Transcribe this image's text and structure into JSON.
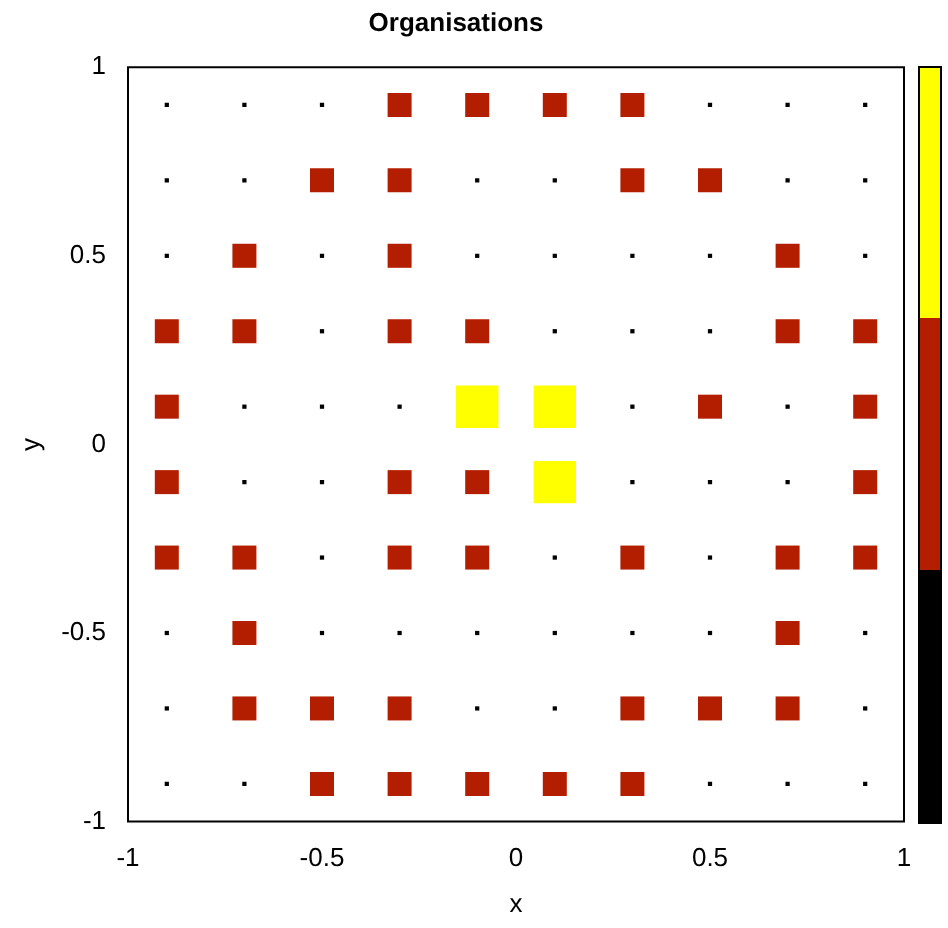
{
  "chart_data": {
    "type": "bubble",
    "title": "Organisations",
    "xlabel": "x",
    "ylabel": "y",
    "x": [
      -0.9,
      -0.7,
      -0.5,
      -0.3,
      -0.1,
      0.1,
      0.3,
      0.5,
      0.7,
      0.9,
      -0.9,
      -0.7,
      -0.5,
      -0.3,
      -0.1,
      0.1,
      0.3,
      0.5,
      0.7,
      0.9,
      -0.9,
      -0.7,
      -0.5,
      -0.3,
      -0.1,
      0.1,
      0.3,
      0.5,
      0.7,
      0.9,
      -0.9,
      -0.7,
      -0.5,
      -0.3,
      -0.1,
      0.1,
      0.3,
      0.5,
      0.7,
      0.9,
      -0.9,
      -0.7,
      -0.5,
      -0.3,
      -0.1,
      0.1,
      0.3,
      0.5,
      0.7,
      0.9,
      -0.9,
      -0.7,
      -0.5,
      -0.3,
      -0.1,
      0.1,
      0.3,
      0.5,
      0.7,
      0.9,
      -0.9,
      -0.7,
      -0.5,
      -0.3,
      -0.1,
      0.1,
      0.3,
      0.5,
      0.7,
      0.9,
      -0.9,
      -0.7,
      -0.5,
      -0.3,
      -0.1,
      0.1,
      0.3,
      0.5,
      0.7,
      0.9,
      -0.9,
      -0.7,
      -0.5,
      -0.3,
      -0.1,
      0.1,
      0.3,
      0.5,
      0.7,
      0.9,
      -0.9,
      -0.7,
      -0.5,
      -0.3,
      -0.1,
      0.1,
      0.3,
      0.5,
      0.7,
      0.9
    ],
    "values": [
      0.9,
      0.9,
      0.9,
      0.9,
      0.9,
      0.9,
      0.9,
      0.9,
      0.9,
      0.9,
      0.7,
      0.7,
      0.7,
      0.7,
      0.7,
      0.7,
      0.7,
      0.7,
      0.7,
      0.7,
      0.5,
      0.5,
      0.5,
      0.5,
      0.5,
      0.5,
      0.5,
      0.5,
      0.5,
      0.5,
      0.3,
      0.3,
      0.3,
      0.3,
      0.3,
      0.3,
      0.3,
      0.3,
      0.3,
      0.3,
      0.1,
      0.1,
      0.1,
      0.1,
      0.1,
      0.1,
      0.1,
      0.1,
      0.1,
      0.1,
      -0.1,
      -0.1,
      -0.1,
      -0.1,
      -0.1,
      -0.1,
      -0.1,
      -0.1,
      -0.1,
      -0.1,
      -0.3,
      -0.3,
      -0.3,
      -0.3,
      -0.3,
      -0.3,
      -0.3,
      -0.3,
      -0.3,
      -0.3,
      -0.5,
      -0.5,
      -0.5,
      -0.5,
      -0.5,
      -0.5,
      -0.5,
      -0.5,
      -0.5,
      -0.5,
      -0.7,
      -0.7,
      -0.7,
      -0.7,
      -0.7,
      -0.7,
      -0.7,
      -0.7,
      -0.7,
      -0.7,
      -0.9,
      -0.9,
      -0.9,
      -0.9,
      -0.9,
      -0.9,
      -0.9,
      -0.9,
      -0.9,
      -0.9
    ],
    "sizes": [
      0.01,
      0.01,
      0.01,
      0.32,
      0.32,
      0.32,
      0.32,
      0.01,
      0.01,
      0.01,
      0.01,
      0.01,
      0.32,
      0.32,
      0.01,
      0.01,
      0.32,
      0.32,
      0.01,
      0.01,
      0.01,
      0.32,
      0.01,
      0.32,
      0.01,
      0.01,
      0.01,
      0.01,
      0.32,
      0.01,
      0.32,
      0.32,
      0.01,
      0.32,
      0.32,
      0.01,
      0.01,
      0.01,
      0.32,
      0.32,
      0.32,
      0.01,
      0.01,
      0.01,
      1,
      1,
      0.01,
      0.32,
      0.01,
      0.32,
      0.32,
      0.01,
      0.01,
      0.32,
      0.32,
      1,
      0.01,
      0.01,
      0.01,
      0.32,
      0.32,
      0.32,
      0.01,
      0.32,
      0.32,
      0.01,
      0.32,
      0.01,
      0.32,
      0.32,
      0.01,
      0.32,
      0.01,
      0.01,
      0.01,
      0.01,
      0.01,
      0.01,
      0.32,
      0.01,
      0.01,
      0.32,
      0.32,
      0.32,
      0.01,
      0.01,
      0.32,
      0.32,
      0.32,
      0.01,
      0.01,
      0.01,
      0.32,
      0.32,
      0.32,
      0.32,
      0.32,
      0.01,
      0.01,
      0.01
    ],
    "colors": [
      "#000000",
      "#000000",
      "#000000",
      "#b41e00",
      "#b41e00",
      "#b41e00",
      "#b41e00",
      "#000000",
      "#000000",
      "#000000",
      "#000000",
      "#000000",
      "#b41e00",
      "#b41e00",
      "#000000",
      "#000000",
      "#b41e00",
      "#b41e00",
      "#000000",
      "#000000",
      "#000000",
      "#b41e00",
      "#000000",
      "#b41e00",
      "#000000",
      "#000000",
      "#000000",
      "#000000",
      "#b41e00",
      "#000000",
      "#b41e00",
      "#b41e00",
      "#000000",
      "#b41e00",
      "#b41e00",
      "#000000",
      "#000000",
      "#000000",
      "#b41e00",
      "#b41e00",
      "#b41e00",
      "#000000",
      "#000000",
      "#000000",
      "#ffff00",
      "#ffff00",
      "#000000",
      "#b41e00",
      "#000000",
      "#b41e00",
      "#b41e00",
      "#000000",
      "#000000",
      "#b41e00",
      "#b41e00",
      "#ffff00",
      "#000000",
      "#000000",
      "#000000",
      "#b41e00",
      "#b41e00",
      "#b41e00",
      "#000000",
      "#b41e00",
      "#b41e00",
      "#000000",
      "#b41e00",
      "#000000",
      "#b41e00",
      "#b41e00",
      "#000000",
      "#b41e00",
      "#000000",
      "#000000",
      "#000000",
      "#000000",
      "#000000",
      "#000000",
      "#b41e00",
      "#000000",
      "#000000",
      "#b41e00",
      "#b41e00",
      "#b41e00",
      "#000000",
      "#000000",
      "#b41e00",
      "#b41e00",
      "#b41e00",
      "#000000",
      "#000000",
      "#000000",
      "#b41e00",
      "#b41e00",
      "#b41e00",
      "#b41e00",
      "#b41e00",
      "#000000",
      "#000000",
      "#000000"
    ],
    "marker": "square",
    "xlim": [
      -1,
      1
    ],
    "xticks": [
      -1,
      -0.5,
      0,
      0.5,
      1
    ],
    "ylim": [
      -1,
      1
    ],
    "yticks": [
      -1,
      -0.5,
      0,
      0.5,
      1
    ]
  }
}
